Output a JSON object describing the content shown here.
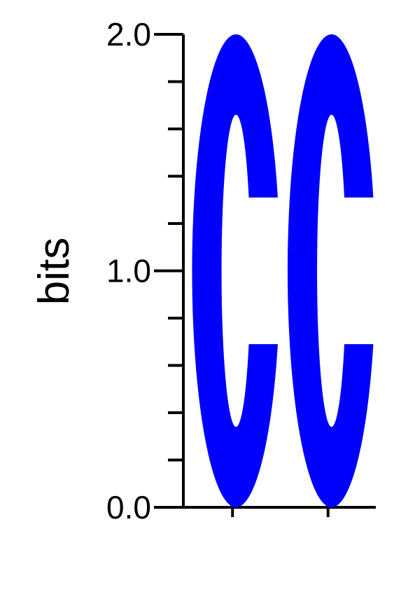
{
  "chart_data": {
    "type": "sequence-logo",
    "ylabel": "bits",
    "ylim": [
      0,
      2
    ],
    "yticks": [
      {
        "value": 0,
        "label": "0.0"
      },
      {
        "value": 1,
        "label": "1.0"
      },
      {
        "value": 2,
        "label": "2.0"
      }
    ],
    "minor_tick_step": 0.2,
    "positions": [
      {
        "letters": [
          {
            "letter": "C",
            "bits": 2.0,
            "color": "#0000ff"
          }
        ]
      },
      {
        "letters": [
          {
            "letter": "C",
            "bits": 2.0,
            "color": "#0000ff"
          }
        ]
      }
    ]
  }
}
